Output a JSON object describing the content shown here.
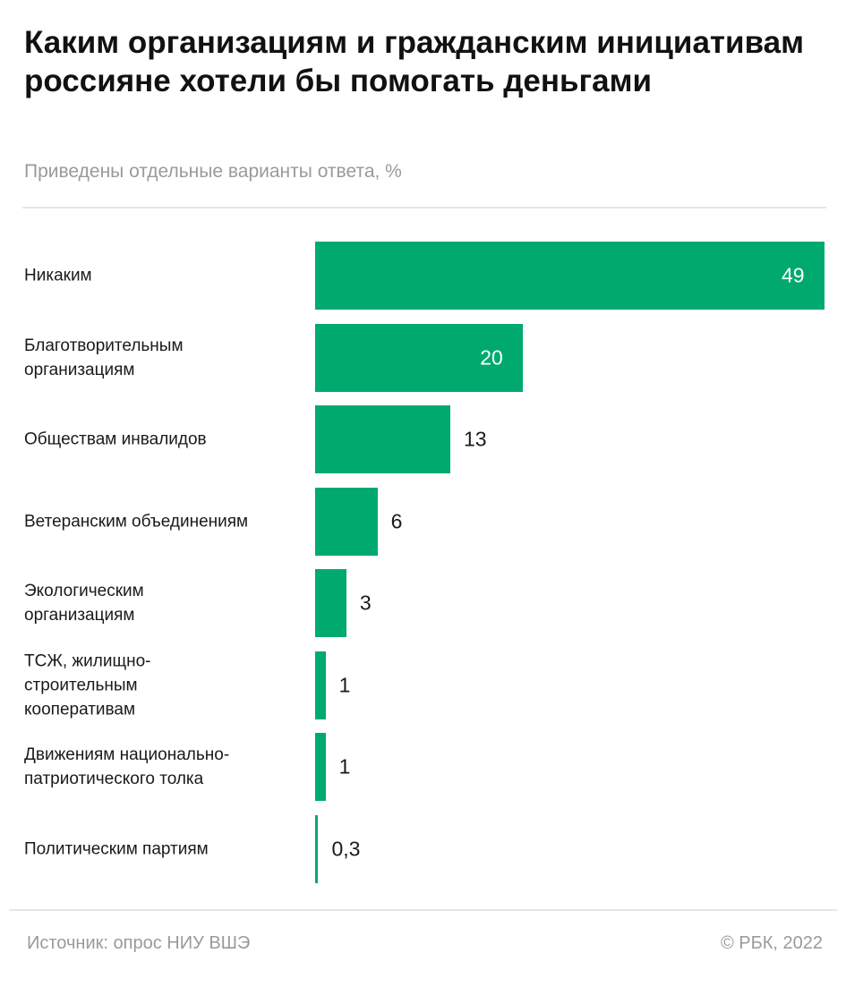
{
  "chart_data": {
    "type": "bar",
    "orientation": "horizontal",
    "title": "Каким организациям и гражданским инициативам россияне хотели бы помогать деньгами",
    "subtitle": "Приведены отдельные варианты ответа, %",
    "categories": [
      "Никаким",
      "Благотворительным\nорганизациям",
      "Обществам инвалидов",
      "Ветеранским объединениям",
      "Экологическим\nорганизациям",
      "ТСЖ,  жилищно-\nстроительным\nкооперативам",
      "Движениям национально-\nпатриотического толка",
      "Политическим партиям"
    ],
    "values": [
      49,
      20,
      13,
      6,
      3,
      1,
      1,
      0.3
    ],
    "value_labels": [
      "49",
      "20",
      "13",
      "6",
      "3",
      "1",
      "1",
      "0,3"
    ],
    "xlim": [
      0,
      49
    ],
    "grid": false,
    "color": "#00aa6e"
  },
  "footer": {
    "source": "Источник: опрос НИУ ВШЭ",
    "copyright": "©  РБК, 2022"
  }
}
